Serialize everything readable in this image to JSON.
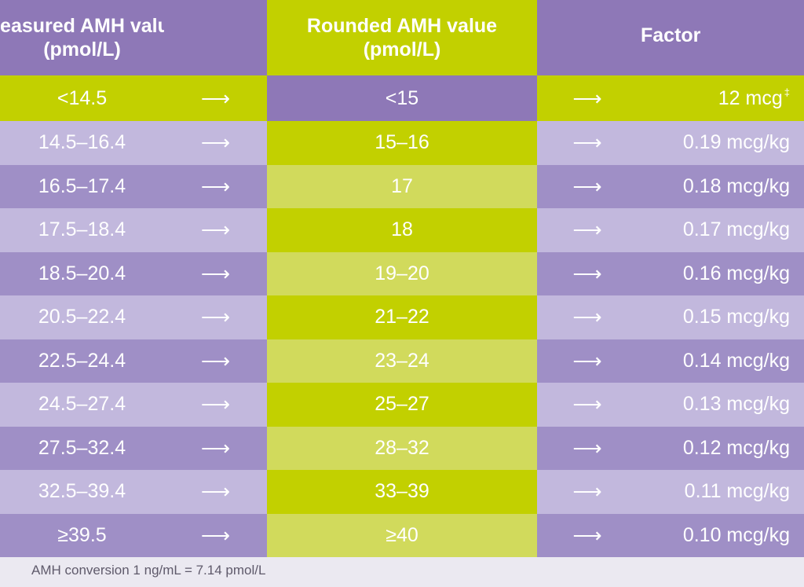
{
  "headers": {
    "measured": [
      "Measured AMH value",
      "(pmol/L)"
    ],
    "rounded": [
      "Rounded AMH value",
      "(pmol/L)"
    ],
    "factor": "Factor"
  },
  "arrow_symbol": "⟶",
  "first_row": {
    "measured": "<14.5",
    "rounded": "<15",
    "factor": "12 mcg",
    "factor_marker": "‡"
  },
  "rows": [
    {
      "measured": "14.5–16.4",
      "rounded": "15–16",
      "factor": "0.19 mcg/kg"
    },
    {
      "measured": "16.5–17.4",
      "rounded": "17",
      "factor": "0.18 mcg/kg"
    },
    {
      "measured": "17.5–18.4",
      "rounded": "18",
      "factor": "0.17 mcg/kg"
    },
    {
      "measured": "18.5–20.4",
      "rounded": "19–20",
      "factor": "0.16 mcg/kg"
    },
    {
      "measured": "20.5–22.4",
      "rounded": "21–22",
      "factor": "0.15 mcg/kg"
    },
    {
      "measured": "22.5–24.4",
      "rounded": "23–24",
      "factor": "0.14 mcg/kg"
    },
    {
      "measured": "24.5–27.4",
      "rounded": "25–27",
      "factor": "0.13 mcg/kg"
    },
    {
      "measured": "27.5–32.4",
      "rounded": "28–32",
      "factor": "0.12 mcg/kg"
    },
    {
      "measured": "32.5–39.4",
      "rounded": "33–39",
      "factor": "0.11 mcg/kg"
    },
    {
      "measured": "≥39.5",
      "rounded": "≥40",
      "factor": "0.10 mcg/kg"
    }
  ],
  "footnote": "AMH conversion 1 ng/mL = 7.14 pmol/L",
  "colors": {
    "header_purple": "#8e78b7",
    "header_green": "#c2d000",
    "row_purple_light": "#c2b8dd",
    "row_purple_dark": "#9f8fc6",
    "row_green_strong": "#c2d000",
    "row_green_soft": "#d1da5c"
  }
}
